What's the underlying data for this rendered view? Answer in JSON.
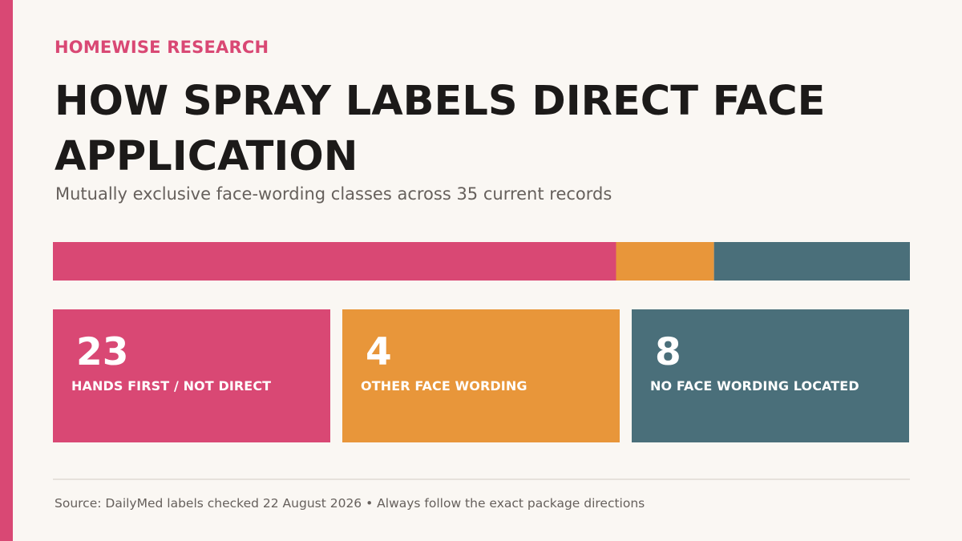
{
  "header": {
    "kicker": "HOMEWISE RESEARCH"
  },
  "chart_data": {
    "type": "bar",
    "title": "HOW SPRAY LABELS DIRECT FACE APPLICATION",
    "subtitle": "Mutually exclusive face-wording classes across 35 current records",
    "categories": [
      "HANDS FIRST / NOT DIRECT",
      "OTHER FACE WORDING",
      "NO FACE WORDING LOCATED"
    ],
    "values": [
      23,
      4,
      8
    ],
    "total": 35,
    "colors": [
      "#d94874",
      "#e8963a",
      "#4a6f7a"
    ],
    "stacked": true,
    "grid": false,
    "legend": "none"
  },
  "footer": {
    "source": "Source: DailyMed labels checked 22 August 2026 • Always follow the exact package directions"
  },
  "theme": {
    "accent": "#d94874",
    "background": "#faf7f3"
  }
}
